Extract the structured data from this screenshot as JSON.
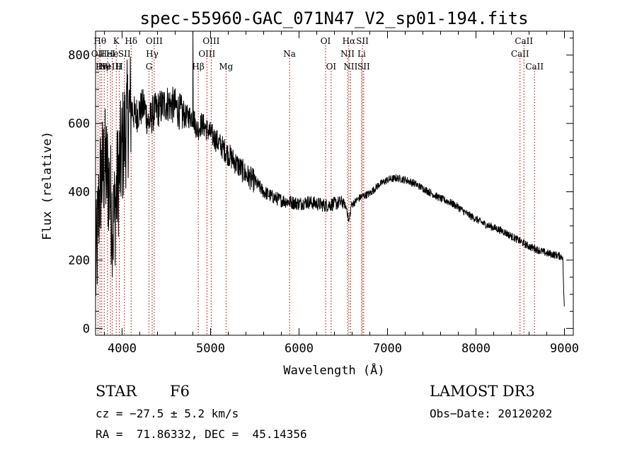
{
  "chart_data": {
    "type": "line",
    "title": "spec-55960-GAC_071N47_V2_sp01-194.fits",
    "xlabel": "Wavelength (Å)",
    "ylabel": "Flux (relative)",
    "xlim": [
      3700,
      9100
    ],
    "ylim": [
      -20,
      870
    ],
    "xticks": [
      4000,
      5000,
      6000,
      7000,
      8000,
      9000
    ],
    "yticks": [
      0,
      200,
      400,
      600,
      800
    ],
    "xtick_labels": [
      "4000",
      "5000",
      "6000",
      "7000",
      "8000",
      "9000"
    ],
    "ytick_labels": [
      "0",
      "200",
      "400",
      "600",
      "800"
    ],
    "grid": false,
    "line_color": "#000000",
    "marker_color": "#a00000",
    "series": [
      {
        "name": "flux",
        "x": [
          3700,
          3750,
          3800,
          3850,
          3900,
          3950,
          4000,
          4050,
          4100,
          4150,
          4200,
          4250,
          4300,
          4350,
          4400,
          4450,
          4500,
          4600,
          4700,
          4800,
          4850,
          4900,
          5000,
          5100,
          5200,
          5300,
          5400,
          5500,
          5600,
          5700,
          5800,
          5900,
          6000,
          6100,
          6200,
          6300,
          6400,
          6500,
          6540,
          6563,
          6590,
          6650,
          6700,
          6800,
          6900,
          7000,
          7100,
          7200,
          7300,
          7400,
          7500,
          7600,
          7700,
          7800,
          7900,
          8000,
          8100,
          8200,
          8300,
          8400,
          8500,
          8600,
          8700,
          8800,
          8900,
          8980,
          9000
        ],
        "y": [
          150,
          420,
          480,
          430,
          300,
          430,
          520,
          600,
          650,
          620,
          640,
          650,
          600,
          630,
          640,
          650,
          660,
          650,
          620,
          620,
          580,
          600,
          570,
          540,
          510,
          480,
          450,
          430,
          400,
          385,
          375,
          370,
          365,
          370,
          365,
          360,
          365,
          370,
          350,
          310,
          360,
          375,
          385,
          395,
          420,
          435,
          440,
          435,
          425,
          410,
          395,
          380,
          370,
          355,
          335,
          320,
          305,
          295,
          285,
          270,
          255,
          240,
          230,
          220,
          215,
          210,
          40
        ]
      }
    ],
    "line_markers": [
      {
        "x": 3727,
        "label": "OII",
        "row": 1
      },
      {
        "x": 3750,
        "label": "Hθ",
        "row": 0
      },
      {
        "x": 3770,
        "label": "Hη",
        "row": 2
      },
      {
        "x": 3798,
        "label": "Hθ",
        "row": 2
      },
      {
        "x": 3835,
        "label": "HeI",
        "row": 1
      },
      {
        "x": 3869,
        "label": "NeIII",
        "row": 2
      },
      {
        "x": 3889,
        "label": "He",
        "row": 1
      },
      {
        "x": 3934,
        "label": "K",
        "row": 0
      },
      {
        "x": 3969,
        "label": "H",
        "row": 2
      },
      {
        "x": 4026,
        "label": "SII",
        "row": 1
      },
      {
        "x": 4102,
        "label": "Hδ",
        "row": 0
      },
      {
        "x": 4304,
        "label": "G",
        "row": 2
      },
      {
        "x": 4340,
        "label": "Hγ",
        "row": 1
      },
      {
        "x": 4363,
        "label": "OIII",
        "row": 0
      },
      {
        "x": 4861,
        "label": "Hβ",
        "row": 2
      },
      {
        "x": 4959,
        "label": "OIII",
        "row": 1
      },
      {
        "x": 5007,
        "label": "OIII",
        "row": 0
      },
      {
        "x": 5175,
        "label": "Mg",
        "row": 2
      },
      {
        "x": 5893,
        "label": "Na",
        "row": 1
      },
      {
        "x": 6300,
        "label": "OI",
        "row": 0
      },
      {
        "x": 6363,
        "label": "OI",
        "row": 2
      },
      {
        "x": 6548,
        "label": "NII",
        "row": 1
      },
      {
        "x": 6563,
        "label": "Hα",
        "row": 0
      },
      {
        "x": 6583,
        "label": "NII",
        "row": 2
      },
      {
        "x": 6707,
        "label": "Li",
        "row": 1
      },
      {
        "x": 6716,
        "label": "SII",
        "row": 0
      },
      {
        "x": 6731,
        "label": "SII",
        "row": 2
      },
      {
        "x": 8498,
        "label": "CaII",
        "row": 1
      },
      {
        "x": 8542,
        "label": "CaII",
        "row": 0
      },
      {
        "x": 8662,
        "label": "CaII",
        "row": 2
      }
    ]
  },
  "info": {
    "class_label": "STAR",
    "subclass": "F6",
    "survey": "LAMOST DR3",
    "cz": "cz = −27.5 ± 5.2 km/s",
    "obs_date": "Obs−Date: 20120202",
    "coords": "RA =  71.86332, DEC =  45.14356"
  }
}
